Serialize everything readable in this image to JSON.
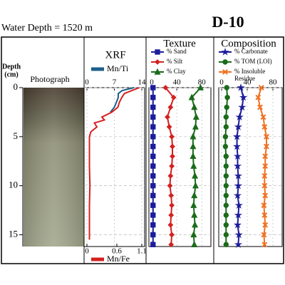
{
  "title": "Water Depth = 1520 m",
  "core": "D-10",
  "depth_axis": {
    "label_lines": [
      "Depth",
      "(cm)"
    ],
    "ylim": [
      0,
      16.2
    ],
    "yticks": [
      0,
      5,
      10,
      15
    ]
  },
  "photo_label": "Photograph",
  "chart_data": [
    {
      "type": "line",
      "title": "XRF",
      "depth": [
        0,
        0.3,
        0.6,
        1,
        1.5,
        2,
        2.5,
        3,
        3.3,
        3.6,
        4,
        4.5,
        5,
        6,
        8,
        10,
        12,
        14,
        15.5
      ],
      "xlim_top": [
        0,
        14
      ],
      "xticks_top": [
        0,
        7,
        14
      ],
      "xlim_bottom": [
        0,
        1.1
      ],
      "xticks_bottom": [
        0,
        0.6,
        1.1
      ],
      "grid": true,
      "series": [
        {
          "name": "Mn/Ti",
          "color": "#1d5f8a",
          "axis": "top",
          "marker": "none",
          "values": [
            12,
            9,
            8,
            8,
            7.5,
            7,
            6,
            null,
            null,
            null,
            null,
            null,
            null,
            null,
            null,
            null,
            null,
            null,
            null
          ]
        },
        {
          "name": "Mn/Fe",
          "color": "#d42020",
          "axis": "bottom",
          "marker": "none",
          "values": [
            1.05,
            0.9,
            0.75,
            0.7,
            0.65,
            0.62,
            0.5,
            0.3,
            0.35,
            0.15,
            0.2,
            0.08,
            0.05,
            0.05,
            0.05,
            0.06,
            0.05,
            0.05,
            0.05
          ]
        }
      ]
    },
    {
      "type": "line",
      "title": "Texture",
      "depth": [
        0,
        1,
        2,
        3,
        4,
        5,
        6,
        7,
        8,
        9,
        10,
        11,
        12,
        13,
        14,
        15,
        16
      ],
      "xlim_top": [
        0,
        90
      ],
      "xticks_top": [
        0,
        40,
        80
      ],
      "grid": true,
      "series": [
        {
          "name": "% Sand",
          "color": "#1c1c9c",
          "axis": "top",
          "marker": "square",
          "values": [
            2,
            2,
            2,
            2,
            2,
            2,
            2,
            2,
            2,
            2,
            2,
            2,
            2,
            2,
            2,
            2,
            2
          ]
        },
        {
          "name": "% Silt",
          "color": "#d42020",
          "axis": "top",
          "marker": "diamond",
          "values": [
            22,
            35,
            30,
            25,
            28,
            32,
            33,
            33,
            32,
            30,
            29,
            31,
            32,
            31,
            30,
            32,
            31
          ]
        },
        {
          "name": "% Clay",
          "color": "#1a6b1a",
          "axis": "top",
          "marker": "triangle",
          "values": [
            78,
            64,
            68,
            71,
            70,
            66,
            66,
            66,
            67,
            69,
            70,
            68,
            67,
            68,
            69,
            67,
            68
          ]
        }
      ]
    },
    {
      "type": "line",
      "title": "Composition",
      "depth": [
        0,
        1,
        2,
        3,
        4,
        5,
        6,
        7,
        8,
        9,
        10,
        11,
        12,
        13,
        14,
        15,
        16
      ],
      "xlim_top": [
        0,
        90
      ],
      "xticks_top": [
        0,
        40,
        80
      ],
      "grid": true,
      "series": [
        {
          "name": "% Carbonate",
          "color": "#1c1c9c",
          "axis": "top",
          "marker": "star",
          "values": [
            30,
            34,
            32,
            28,
            26,
            24,
            24,
            25,
            25,
            26,
            26,
            25,
            27,
            26,
            25,
            27,
            26
          ]
        },
        {
          "name": "% TOM (LOI)",
          "color": "#1a6b1a",
          "axis": "top",
          "marker": "circle",
          "values": [
            8,
            9,
            8,
            7,
            7,
            6,
            6,
            7,
            7,
            7,
            7,
            7,
            7,
            7,
            7,
            7,
            7
          ]
        },
        {
          "name": "% Insoluble Residue",
          "color": "#f07020",
          "axis": "top",
          "marker": "cross",
          "values": [
            62,
            57,
            60,
            65,
            67,
            70,
            70,
            68,
            68,
            67,
            67,
            68,
            66,
            67,
            68,
            66,
            67
          ]
        }
      ]
    }
  ]
}
